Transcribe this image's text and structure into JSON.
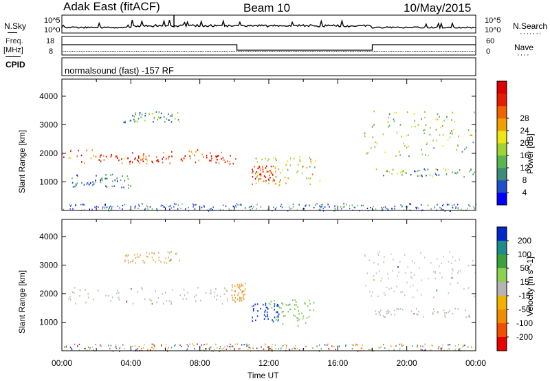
{
  "header": {
    "title": "Adak East (fitACF)",
    "beam": "Beam 10",
    "date": "10/May/2015"
  },
  "top_panels": {
    "nsky_label": "N.Sky",
    "nsearch_label": "N.Search",
    "freq_label_line1": "Freq.",
    "freq_label_line2": "[MHz]",
    "nave_label": "Nave",
    "cpid_label": "CPID",
    "noise_ticks": [
      "10^5",
      "10^0"
    ],
    "noise_ticks_right": [
      "10^5",
      "10^0"
    ],
    "freq_ticks": [
      "18",
      "8"
    ],
    "nave_ticks": [
      "60",
      "0"
    ],
    "cpid_text": "normalsound (fast) -157 RF"
  },
  "chart_data": [
    {
      "type": "heatmap",
      "title": "",
      "xlabel": "Time UT",
      "ylabel": "Slant Range [km]",
      "xlim": [
        "00:00",
        "24:00"
      ],
      "ylim": [
        0,
        4600
      ],
      "x_ticks": [
        "00:00",
        "04:00",
        "08:00",
        "12:00",
        "16:00",
        "20:00",
        "00:00"
      ],
      "y_ticks": [
        "1000",
        "2000",
        "3000",
        "4000"
      ],
      "colorbar": {
        "label": "Power [dB]",
        "ticks": [
          "4",
          "8",
          "12",
          "16",
          "20",
          "24",
          "28"
        ],
        "colors": [
          "#0000ff",
          "#1e50c8",
          "#3c8c78",
          "#5ab450",
          "#a0d232",
          "#f0e614",
          "#f0a000",
          "#f06400",
          "#e61e00",
          "#dc0000"
        ]
      },
      "regions": [
        {
          "name": "band-early",
          "t": [
            0.0,
            10.2
          ],
          "r": [
            1650,
            2150
          ],
          "level": 0.75
        },
        {
          "name": "core-early",
          "t": [
            2.0,
            9.8
          ],
          "r": [
            1700,
            1950
          ],
          "level": 0.95
        },
        {
          "name": "patch-noon",
          "t": [
            11.0,
            15.0
          ],
          "r": [
            900,
            1900
          ],
          "level": 0.55
        },
        {
          "name": "echo-noon",
          "t": [
            11.0,
            12.4
          ],
          "r": [
            1050,
            1600
          ],
          "level": 0.85
        },
        {
          "name": "streak-evening",
          "t": [
            18.0,
            24.0
          ],
          "r": [
            1200,
            1500
          ],
          "level": 0.35
        },
        {
          "name": "arcs-evening",
          "t": [
            17.5,
            24.0
          ],
          "r": [
            1900,
            3500
          ],
          "level": 0.45
        },
        {
          "name": "patch-high",
          "t": [
            3.5,
            6.8
          ],
          "r": [
            3100,
            3500
          ],
          "level": 0.3
        },
        {
          "name": "lower-scatter",
          "t": [
            0.5,
            4.0
          ],
          "r": [
            800,
            1300
          ],
          "level": 0.2
        }
      ]
    },
    {
      "type": "heatmap",
      "title": "",
      "xlabel": "Time UT",
      "ylabel": "Slant Range [km]",
      "xlim": [
        "00:00",
        "24:00"
      ],
      "ylim": [
        0,
        4600
      ],
      "x_ticks": [
        "00:00",
        "04:00",
        "08:00",
        "12:00",
        "16:00",
        "20:00",
        "00:00"
      ],
      "y_ticks": [
        "1000",
        "2000",
        "3000",
        "4000"
      ],
      "colorbar": {
        "label": "Velocity [m s^-1]",
        "ticks": [
          "200",
          "100",
          "50",
          "15",
          "-15",
          "-50",
          "-100",
          "-200"
        ],
        "colors": [
          "#0028c8",
          "#1e8c8c",
          "#3ca03c",
          "#8cd250",
          "#b4b4b4",
          "#f0b400",
          "#f08c00",
          "#f05000",
          "#e60000"
        ]
      },
      "regions": [
        {
          "name": "band-early",
          "t": [
            0.0,
            9.8
          ],
          "r": [
            1650,
            2250
          ],
          "color": "#bdbdb5"
        },
        {
          "name": "jet-10h",
          "t": [
            9.8,
            10.6
          ],
          "r": [
            1700,
            2400
          ],
          "color": "#f0a030"
        },
        {
          "name": "patch-noon-blue",
          "t": [
            11.0,
            12.6
          ],
          "r": [
            1050,
            1700
          ],
          "color": "#0a3cdc"
        },
        {
          "name": "patch-noon-green",
          "t": [
            12.0,
            14.6
          ],
          "r": [
            900,
            1800
          ],
          "color": "#78c850"
        },
        {
          "name": "evening-gray",
          "t": [
            18.0,
            24.0
          ],
          "r": [
            1200,
            1500
          ],
          "color": "#bdbdb5"
        },
        {
          "name": "evening-arcs",
          "t": [
            17.5,
            24.0
          ],
          "r": [
            1900,
            3500
          ],
          "color": "#c8c8c0"
        },
        {
          "name": "high-orange",
          "t": [
            3.5,
            6.8
          ],
          "r": [
            3100,
            3500
          ],
          "color": "#e8b060"
        }
      ]
    }
  ]
}
